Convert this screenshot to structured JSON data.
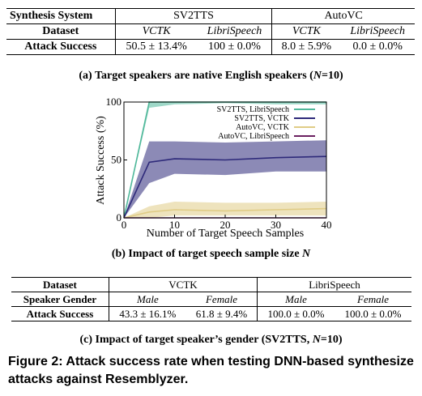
{
  "table_a": {
    "col_system": "Synthesis System",
    "sys_sv2tts": "SV2TTS",
    "sys_autovc": "AutoVC",
    "row_dataset": "Dataset",
    "datasets": [
      "VCTK",
      "LibriSpeech",
      "VCTK",
      "LibriSpeech"
    ],
    "row_attack": "Attack Success",
    "values": [
      "50.5 ± 13.4%",
      "100 ± 0.0%",
      "8.0 ± 5.9%",
      "0.0 ± 0.0%"
    ]
  },
  "caption_a_prefix": "(a) Target speakers are native English speakers (",
  "caption_a_math": "N",
  "caption_a_suffix": "=10)",
  "chart_data": {
    "type": "line",
    "xlabel": "Number of Target Speech Samples",
    "ylabel": "Attack Success (%)",
    "xlim": [
      0,
      40
    ],
    "ylim": [
      0,
      100
    ],
    "xticks": [
      "0",
      "10",
      "20",
      "30",
      "40"
    ],
    "yticks": [
      "0",
      "50",
      "100"
    ],
    "x": [
      0,
      5,
      10,
      20,
      30,
      40
    ],
    "legend_position": "top-right",
    "series": [
      {
        "name": "SV2TTS, LibriSpeech",
        "color": "#4fb89a",
        "values": [
          0,
          100,
          100,
          100,
          100,
          100
        ],
        "lower": [
          0,
          95,
          98,
          99,
          98,
          98
        ],
        "upper": [
          0,
          100,
          100,
          100,
          100,
          100
        ]
      },
      {
        "name": "SV2TTS, VCTK",
        "color": "#2e2a7a",
        "values": [
          0,
          48,
          51,
          50,
          52,
          53
        ],
        "lower": [
          0,
          30,
          38,
          37,
          40,
          40
        ],
        "upper": [
          0,
          66,
          66,
          65,
          66,
          67
        ]
      },
      {
        "name": "AutoVC, VCTK",
        "color": "#e0cc86",
        "values": [
          0,
          5,
          7,
          6,
          7,
          8
        ],
        "lower": [
          0,
          0,
          2,
          2,
          2,
          2
        ],
        "upper": [
          0,
          10,
          14,
          13,
          13,
          14
        ]
      },
      {
        "name": "AutoVC, LibriSpeech",
        "color": "#6b2060",
        "values": [
          0,
          0,
          0,
          0,
          0,
          0
        ],
        "lower": [
          0,
          0,
          0,
          0,
          0,
          0
        ],
        "upper": [
          0,
          0,
          0,
          0,
          0,
          0
        ]
      }
    ]
  },
  "caption_b_prefix": "(b) Impact of target speech sample size ",
  "caption_b_math": "N",
  "table_c": {
    "row_dataset": "Dataset",
    "ds_vctk": "VCTK",
    "ds_libri": "LibriSpeech",
    "row_gender": "Speaker Gender",
    "genders": [
      "Male",
      "Female",
      "Male",
      "Female"
    ],
    "row_attack": "Attack Success",
    "values": [
      "43.3 ± 16.1%",
      "61.8 ± 9.4%",
      "100.0 ± 0.0%",
      "100.0 ± 0.0%"
    ]
  },
  "caption_c_prefix": "(c) Impact of target speaker’s gender (SV2TTS, ",
  "caption_c_math": "N",
  "caption_c_suffix": "=10)",
  "figure_caption": "Figure 2: Attack success rate when testing DNN-based synthesize attacks against Resemblyzer."
}
